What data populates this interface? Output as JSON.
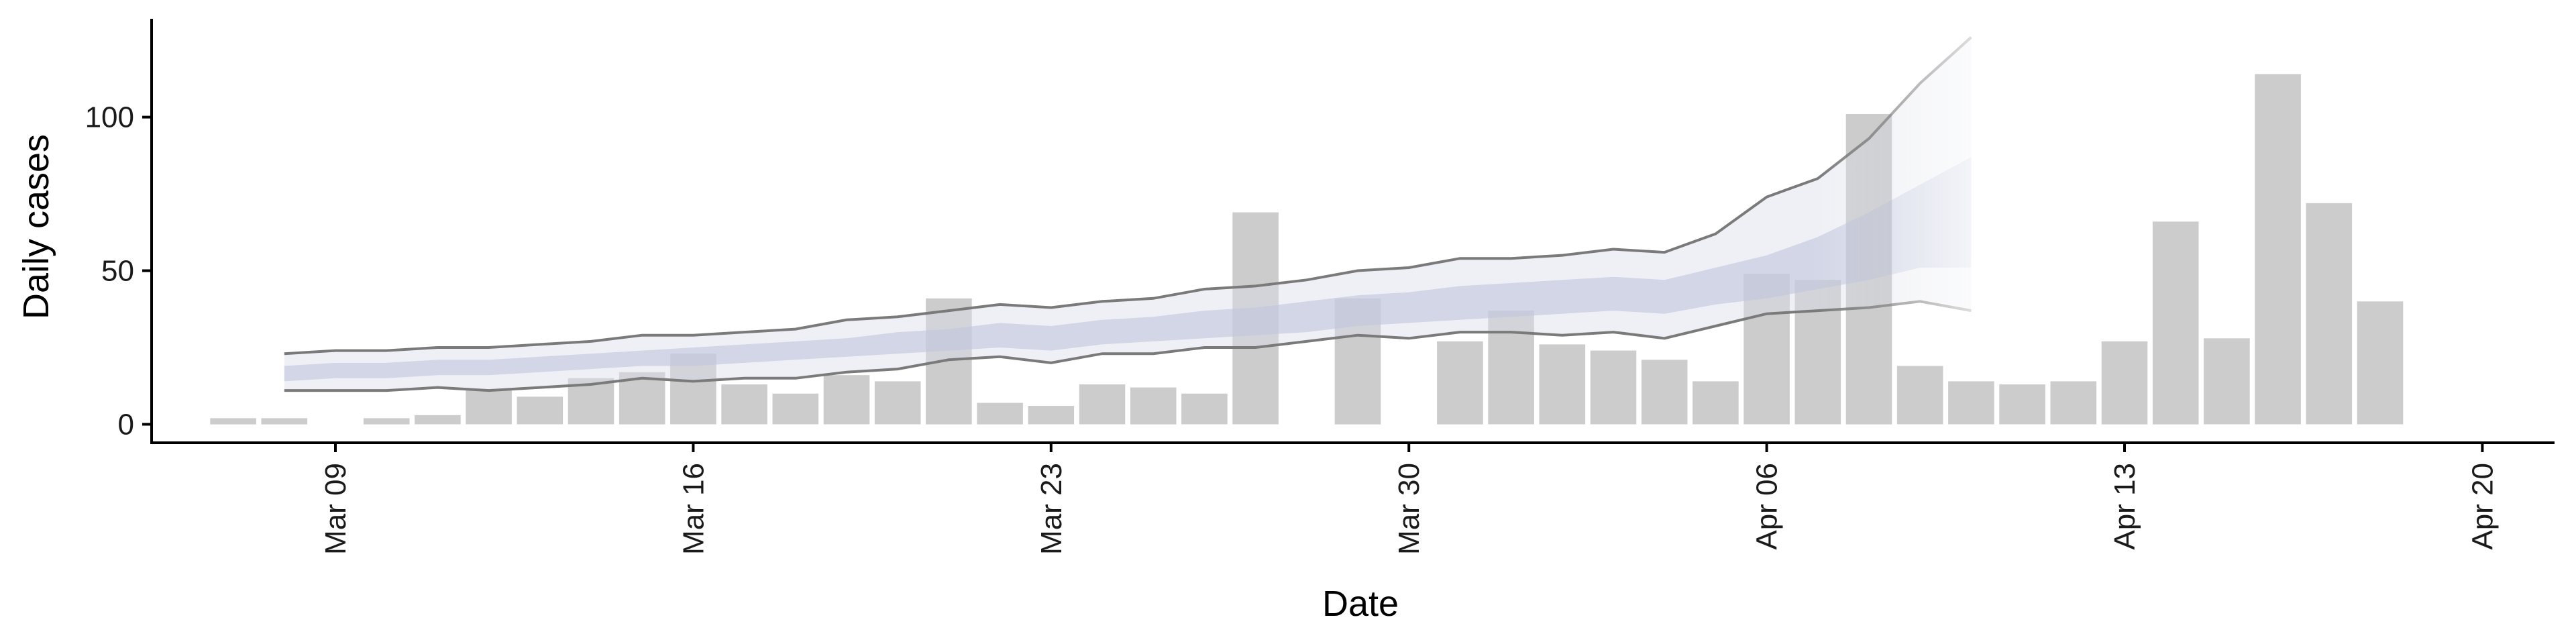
{
  "chart_data": {
    "type": "bar",
    "xlabel": "Date",
    "ylabel": "Daily cases",
    "x_tick_labels": [
      "Mar 09",
      "Mar 16",
      "Mar 23",
      "Mar 30",
      "Apr 06",
      "Apr 13",
      "Apr 20"
    ],
    "x_tick_dates": [
      "2020-03-09",
      "2020-03-16",
      "2020-03-23",
      "2020-03-30",
      "2020-04-06",
      "2020-04-13",
      "2020-04-20"
    ],
    "y_ticks": [
      0,
      50,
      100
    ],
    "ylim": [
      -6,
      132
    ],
    "xlim": [
      "2020-03-05",
      "2020-04-21"
    ],
    "grid": false,
    "bars": {
      "color": "#cccccc",
      "dates": [
        "2020-03-07",
        "2020-03-08",
        "2020-03-09",
        "2020-03-10",
        "2020-03-11",
        "2020-03-12",
        "2020-03-13",
        "2020-03-14",
        "2020-03-15",
        "2020-03-16",
        "2020-03-17",
        "2020-03-18",
        "2020-03-19",
        "2020-03-20",
        "2020-03-21",
        "2020-03-22",
        "2020-03-23",
        "2020-03-24",
        "2020-03-25",
        "2020-03-26",
        "2020-03-27",
        "2020-03-28",
        "2020-03-29",
        "2020-03-30",
        "2020-03-31",
        "2020-04-01",
        "2020-04-02",
        "2020-04-03",
        "2020-04-04",
        "2020-04-05",
        "2020-04-06",
        "2020-04-07",
        "2020-04-08",
        "2020-04-09",
        "2020-04-10",
        "2020-04-11",
        "2020-04-12",
        "2020-04-13",
        "2020-04-14",
        "2020-04-15",
        "2020-04-16",
        "2020-04-17",
        "2020-04-18",
        "2020-04-19"
      ],
      "values": [
        2,
        2,
        0,
        2,
        3,
        11,
        9,
        15,
        17,
        23,
        13,
        10,
        16,
        14,
        41,
        7,
        6,
        13,
        12,
        10,
        69,
        0,
        41,
        0,
        27,
        37,
        26,
        24,
        21,
        14,
        49,
        47,
        101,
        19,
        14,
        13,
        14,
        27,
        66,
        28,
        114,
        72,
        40,
        0
      ]
    },
    "nowcast": {
      "dates": [
        "2020-03-08",
        "2020-03-09",
        "2020-03-10",
        "2020-03-11",
        "2020-03-12",
        "2020-03-13",
        "2020-03-14",
        "2020-03-15",
        "2020-03-16",
        "2020-03-17",
        "2020-03-18",
        "2020-03-19",
        "2020-03-20",
        "2020-03-21",
        "2020-03-22",
        "2020-03-23",
        "2020-03-24",
        "2020-03-25",
        "2020-03-26",
        "2020-03-27",
        "2020-03-28",
        "2020-03-29",
        "2020-03-30",
        "2020-03-31",
        "2020-04-01",
        "2020-04-02",
        "2020-04-03",
        "2020-04-04",
        "2020-04-05",
        "2020-04-06",
        "2020-04-07",
        "2020-04-08",
        "2020-04-09",
        "2020-04-10"
      ],
      "upper_90": [
        23,
        24,
        24,
        25,
        25,
        26,
        27,
        29,
        29,
        30,
        31,
        34,
        35,
        37,
        39,
        38,
        40,
        41,
        44,
        45,
        47,
        50,
        51,
        54,
        54,
        55,
        57,
        56,
        62,
        74,
        80,
        93,
        111,
        126
      ],
      "upper_50": [
        19,
        20,
        20,
        21,
        21,
        22,
        23,
        24,
        25,
        26,
        27,
        28,
        30,
        31,
        33,
        32,
        34,
        35,
        37,
        38,
        40,
        42,
        43,
        45,
        46,
        47,
        48,
        47,
        51,
        55,
        61,
        69,
        78,
        87
      ],
      "median": [
        16,
        17,
        17,
        18,
        18,
        19,
        20,
        21,
        22,
        23,
        24,
        25,
        26,
        27,
        28,
        27,
        29,
        30,
        31,
        33,
        34,
        36,
        37,
        39,
        40,
        41,
        42,
        41,
        44,
        47,
        52,
        58,
        64,
        70
      ],
      "lower_50": [
        14,
        15,
        15,
        16,
        16,
        17,
        18,
        19,
        19,
        20,
        21,
        22,
        23,
        24,
        25,
        24,
        26,
        27,
        28,
        29,
        30,
        32,
        33,
        34,
        35,
        36,
        37,
        36,
        39,
        41,
        44,
        47,
        51,
        51
      ],
      "lower_90": [
        11,
        11,
        11,
        12,
        11,
        12,
        13,
        15,
        14,
        15,
        15,
        17,
        18,
        21,
        22,
        20,
        23,
        23,
        25,
        25,
        27,
        29,
        28,
        30,
        30,
        29,
        30,
        28,
        32,
        36,
        37,
        38,
        40,
        37
      ],
      "band_90_color": "#dcdde8",
      "band_50_color": "#bfc5dc",
      "line_color": "#7a7a7a"
    }
  }
}
